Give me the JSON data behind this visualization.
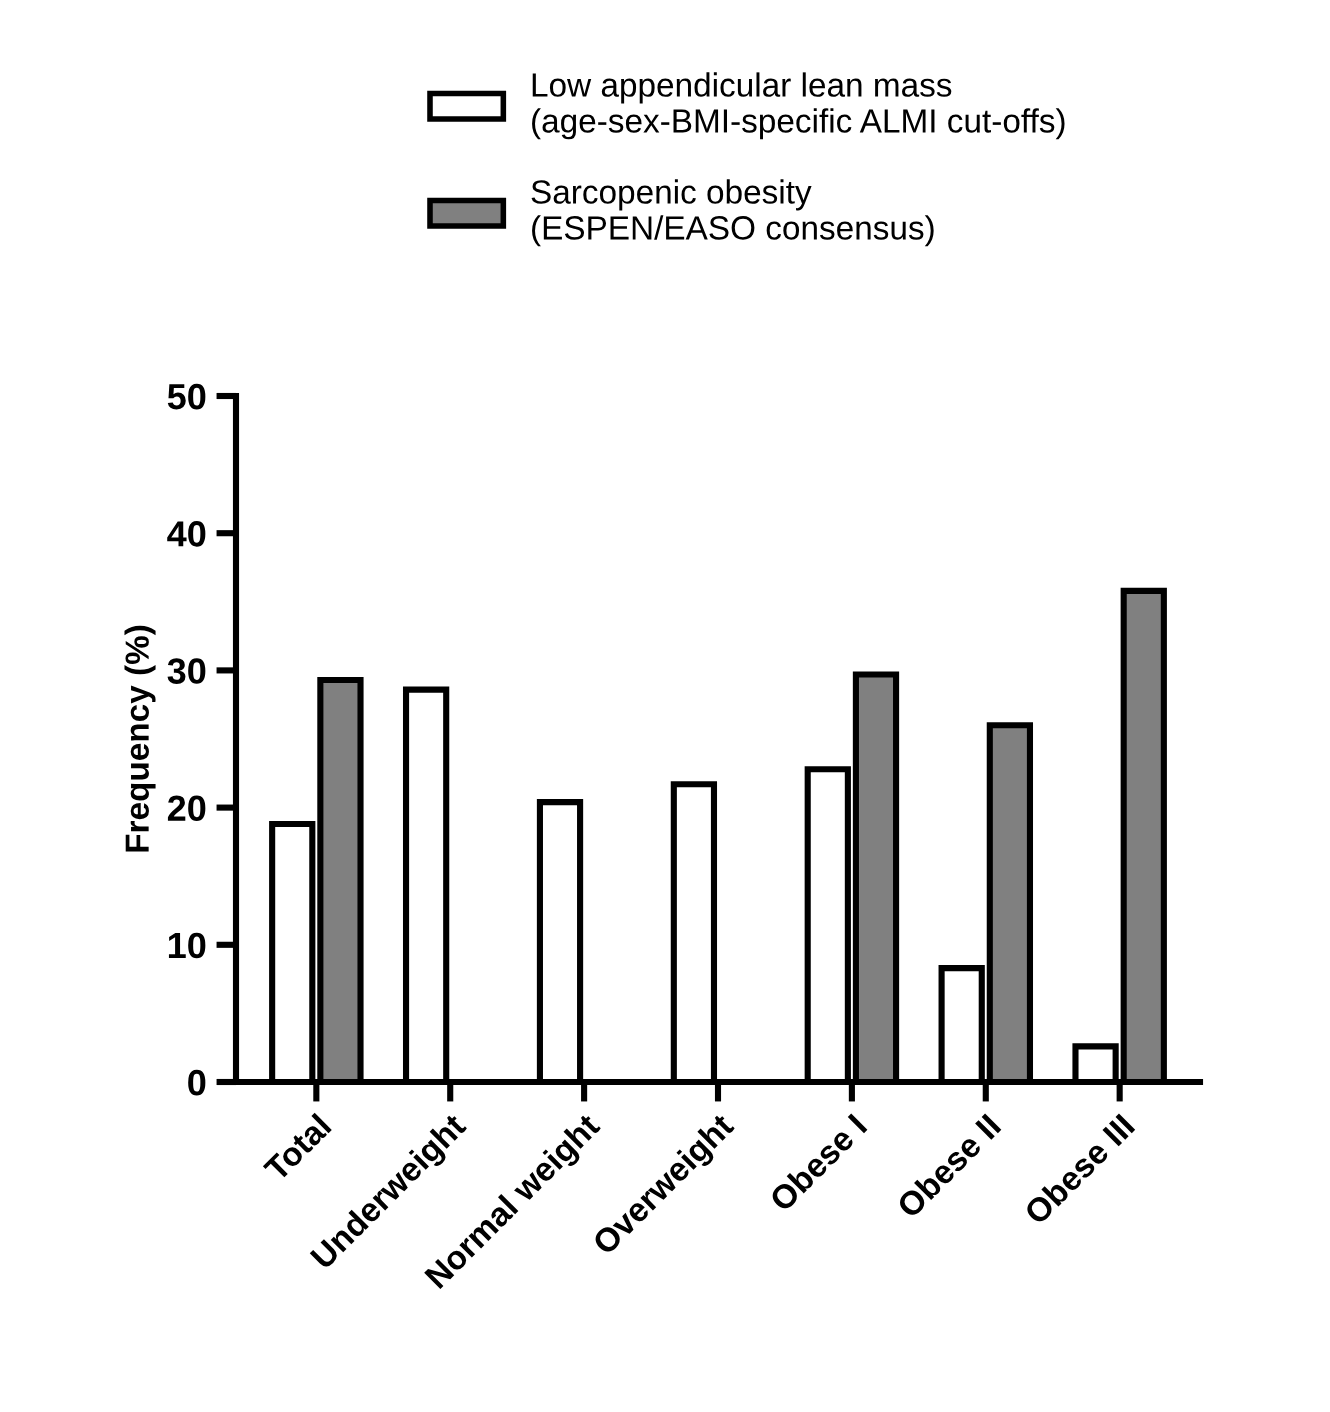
{
  "chart_data": {
    "type": "bar",
    "ylabel": "Frequency (%)",
    "categories": [
      "Total",
      "Underweight",
      "Normal weight",
      "Overweight",
      "Obese I",
      "Obese II",
      "Obese III"
    ],
    "series": [
      {
        "name": "Low appendicular lean mass\n(age-sex-BMI-specific ALMI cut-offs)",
        "color": "#ffffff",
        "values": [
          18.8,
          28.6,
          20.4,
          21.7,
          22.8,
          8.3,
          2.6
        ]
      },
      {
        "name": "Sarcopenic obesity\n(ESPEN/EASO consensus)",
        "color": "#808080",
        "values": [
          29.3,
          null,
          null,
          null,
          29.7,
          26.0,
          35.8
        ]
      }
    ],
    "ylim": [
      0,
      50
    ],
    "yticks": [
      0,
      10,
      20,
      30,
      40,
      50
    ],
    "grid": false,
    "legend": "top"
  }
}
